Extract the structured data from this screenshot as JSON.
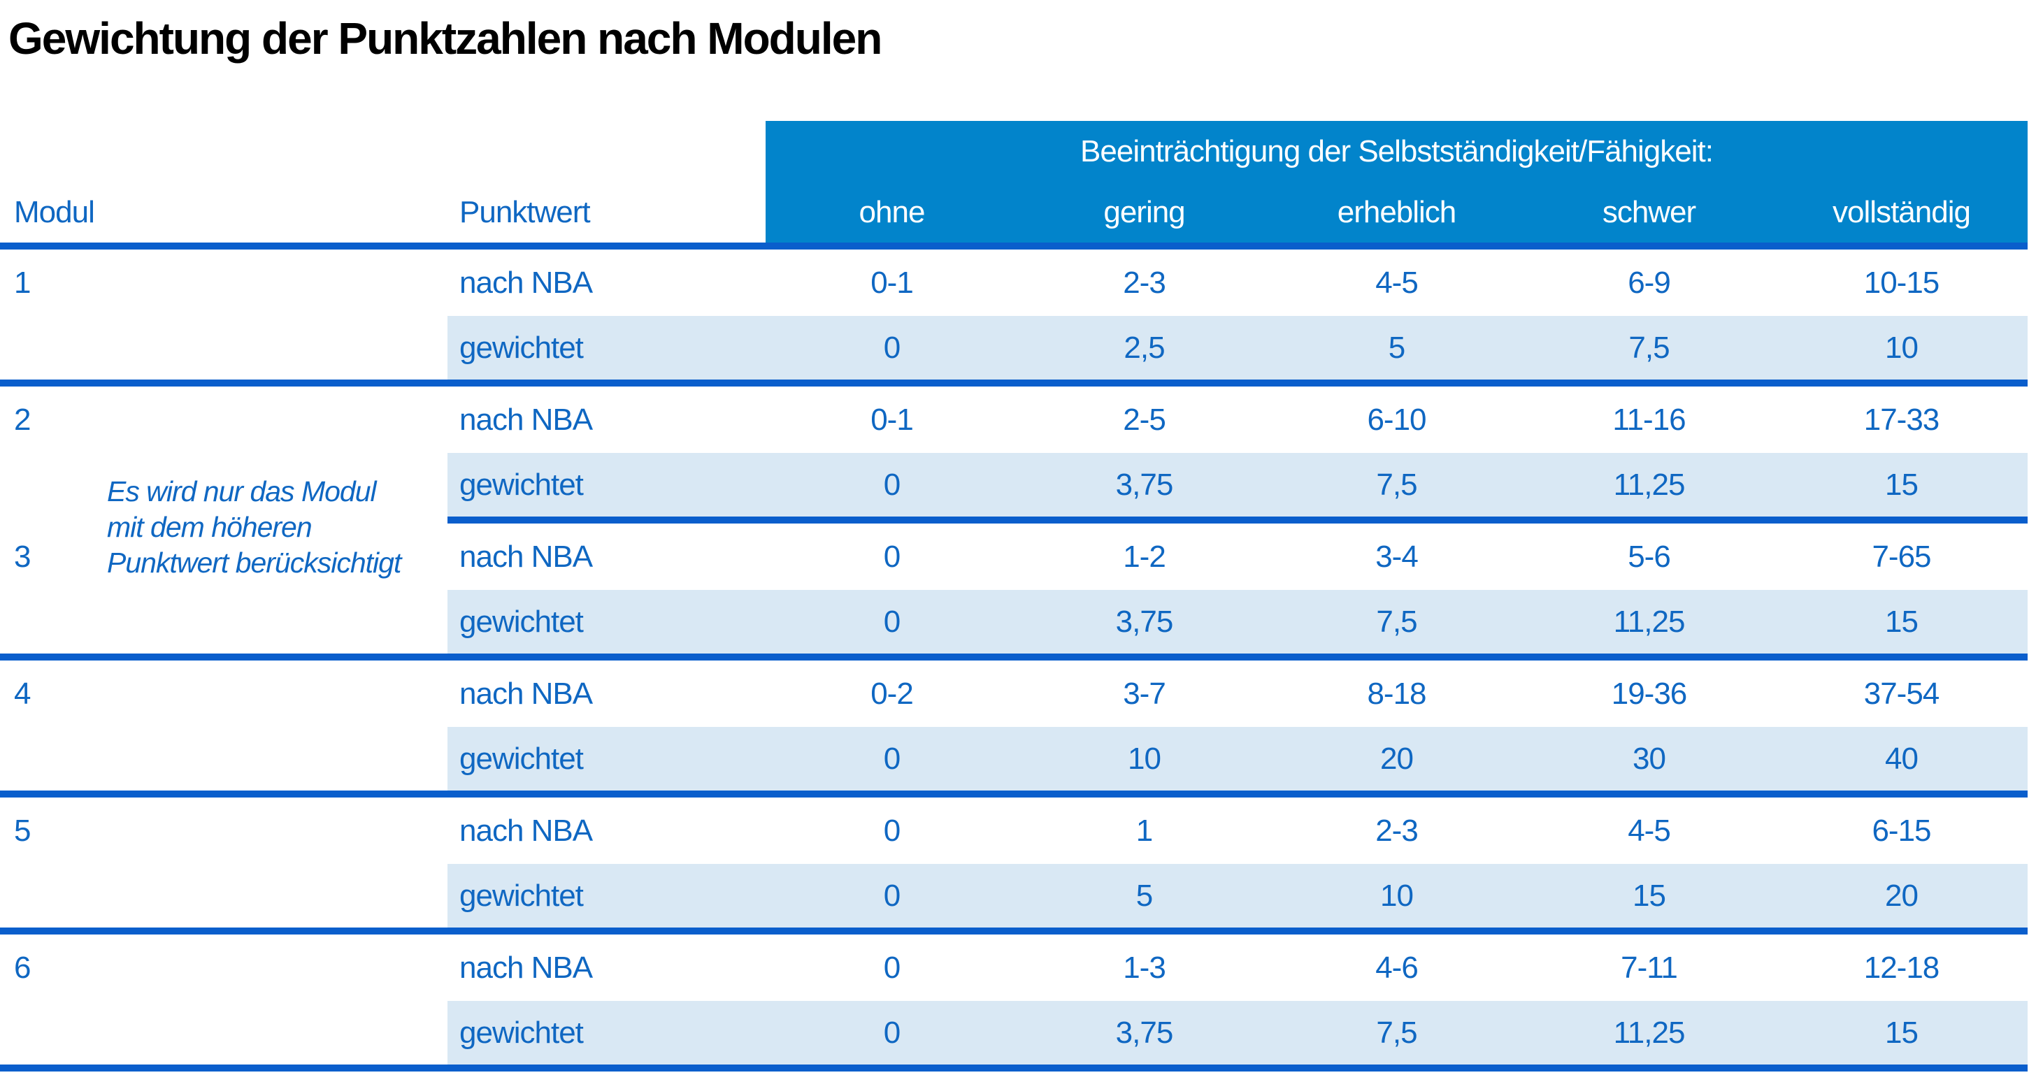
{
  "title": "Gewichtung der Punktzahlen nach Modulen",
  "colors": {
    "header_bg": "#0284CB",
    "divider_line": "#0A5ECC",
    "weighted_row_bg": "#D9E8F4",
    "text_blue": "#0F67C2",
    "header_text": "#FFFFFF",
    "title_text": "#000000"
  },
  "table": {
    "group_header": "Beeinträchtigung der Selbstständigkeit/Fähigkeit:",
    "col_modul": "Modul",
    "col_punktwert": "Punktwert",
    "severity_labels": [
      "ohne",
      "gering",
      "erheblich",
      "schwer",
      "vollständig"
    ],
    "row_label_nba": "nach NBA",
    "row_label_weighted": "gewichtet",
    "note_lines": [
      "Es wird nur das Modul",
      "mit dem höheren",
      "Punktwert berücksichtigt"
    ],
    "modules": [
      {
        "id": "1",
        "nba": [
          "0-1",
          "2-3",
          "4-5",
          "6-9",
          "10-15"
        ],
        "weighted": [
          "0",
          "2,5",
          "5",
          "7,5",
          "10"
        ]
      },
      {
        "id": "2",
        "nba": [
          "0-1",
          "2-5",
          "6-10",
          "11-16",
          "17-33"
        ],
        "weighted": [
          "0",
          "3,75",
          "7,5",
          "11,25",
          "15"
        ]
      },
      {
        "id": "3",
        "nba": [
          "0",
          "1-2",
          "3-4",
          "5-6",
          "7-65"
        ],
        "weighted": [
          "0",
          "3,75",
          "7,5",
          "11,25",
          "15"
        ]
      },
      {
        "id": "4",
        "nba": [
          "0-2",
          "3-7",
          "8-18",
          "19-36",
          "37-54"
        ],
        "weighted": [
          "0",
          "10",
          "20",
          "30",
          "40"
        ]
      },
      {
        "id": "5",
        "nba": [
          "0",
          "1",
          "2-3",
          "4-5",
          "6-15"
        ],
        "weighted": [
          "0",
          "5",
          "10",
          "15",
          "20"
        ]
      },
      {
        "id": "6",
        "nba": [
          "0",
          "1-3",
          "4-6",
          "7-11",
          "12-18"
        ],
        "weighted": [
          "0",
          "3,75",
          "7,5",
          "11,25",
          "15"
        ]
      }
    ]
  }
}
